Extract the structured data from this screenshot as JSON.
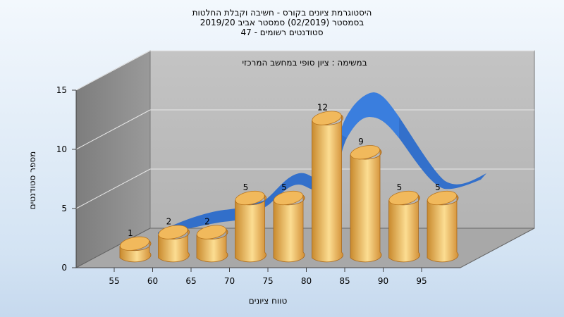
{
  "title_lines": [
    "היסטוגרמת ציונים בקורס - חשיבה וקבלת החלטות",
    "בסמסטר  (02/2019)  סמסטר אביב 2019/20",
    "סטודנטים רשומים - 47"
  ],
  "colors": {
    "bar_light": "#fbd98a",
    "bar_mid": "#eaa94a",
    "bar_dark": "#b8741c",
    "ribbon": "#2c6ccb",
    "wall_back": "#bfbfbf",
    "wall_side": "#8e8e8e",
    "floor": "#a9a9a9",
    "background": "#dbe8f5"
  },
  "chart_data": {
    "type": "bar",
    "subtitle": "במשימה : ציון סופי במחשב המרכזי",
    "x_ticks": [
      "55",
      "60",
      "65",
      "70",
      "75",
      "80",
      "85",
      "90",
      "95"
    ],
    "y_ticks": [
      "0",
      "5",
      "10",
      "15"
    ],
    "ylim": [
      0,
      15
    ],
    "xlabel": "טווח ציונים",
    "ylabel": "מספר סטודנטים",
    "categories": [
      "55",
      "60",
      "65",
      "70",
      "75",
      "80",
      "85",
      "90",
      "95"
    ],
    "values": [
      1,
      2,
      2,
      5,
      5,
      12,
      9,
      5,
      5
    ],
    "value_labels": [
      "1",
      "2",
      "2",
      "5",
      "5",
      "12",
      "9",
      "5",
      "5"
    ],
    "grid": true,
    "legend": "none"
  }
}
